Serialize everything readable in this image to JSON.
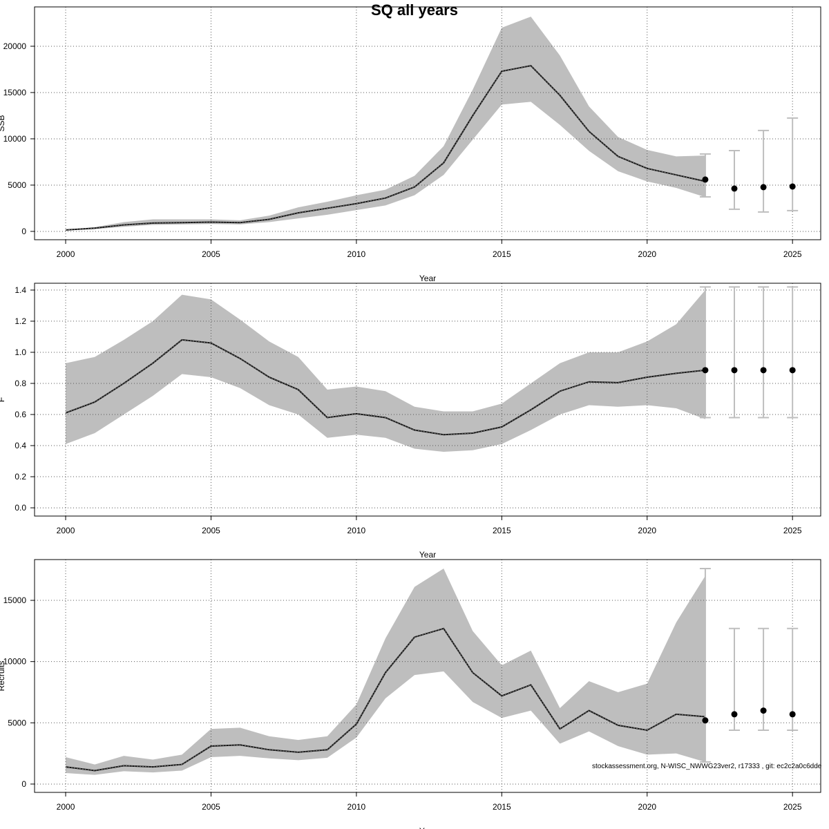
{
  "title": "SQ all years",
  "footer": "stockassessment.org, N-WISC_NWWG23ver2, r17333 , git: ec2c2a0c6dde",
  "colors": {
    "band": "#bebebe",
    "line": "#000000",
    "errorbar": "#bebebe",
    "grid": "#555555"
  },
  "chart_data": [
    {
      "type": "line",
      "title": "SQ all years",
      "xlabel": "Year",
      "ylabel": "SSB",
      "xlim": [
        1998.93,
        2025.97
      ],
      "ylim": [
        -900,
        24250
      ],
      "xticks": [
        2000,
        2005,
        2010,
        2015,
        2020,
        2025
      ],
      "yticks": [
        0,
        5000,
        10000,
        15000,
        20000
      ],
      "grid": true,
      "years": [
        2000,
        2001,
        2002,
        2003,
        2004,
        2005,
        2006,
        2007,
        2008,
        2009,
        2010,
        2011,
        2012,
        2013,
        2014,
        2015,
        2016,
        2017,
        2018,
        2019,
        2020,
        2021,
        2022
      ],
      "median": [
        150,
        350,
        700,
        900,
        950,
        1000,
        950,
        1300,
        2000,
        2500,
        3000,
        3600,
        4800,
        7400,
        12500,
        17300,
        17900,
        14700,
        10800,
        8100,
        6800,
        6100,
        5400
      ],
      "lower": [
        100,
        250,
        500,
        700,
        750,
        800,
        750,
        1000,
        1400,
        1800,
        2300,
        2800,
        3900,
        6100,
        9900,
        13700,
        14000,
        11500,
        8700,
        6500,
        5400,
        4700,
        3700
      ],
      "upper": [
        200,
        450,
        1000,
        1300,
        1300,
        1300,
        1200,
        1700,
        2600,
        3200,
        3900,
        4500,
        6000,
        9200,
        15300,
        22000,
        23200,
        19000,
        13500,
        10200,
        8800,
        8100,
        8200
      ],
      "points": [
        {
          "year": 2022,
          "value": 5600,
          "low": 3730,
          "high": 8360
        },
        {
          "year": 2023,
          "value": 4630,
          "low": 2390,
          "high": 8730
        },
        {
          "year": 2024,
          "value": 4780,
          "low": 2090,
          "high": 10900
        },
        {
          "year": 2025,
          "value": 4850,
          "low": 2240,
          "high": 12240
        }
      ]
    },
    {
      "type": "line",
      "xlabel": "Year",
      "ylabel": "F",
      "xlim": [
        1998.93,
        2025.97
      ],
      "ylim": [
        -0.053,
        1.444
      ],
      "xticks": [
        2000,
        2005,
        2010,
        2015,
        2020,
        2025
      ],
      "yticks": [
        "0.0",
        "0.2",
        "0.4",
        "0.6",
        "0.8",
        "1.0",
        "1.2",
        "1.4"
      ],
      "grid": true,
      "years": [
        2000,
        2001,
        2002,
        2003,
        2004,
        2005,
        2006,
        2007,
        2008,
        2009,
        2010,
        2011,
        2012,
        2013,
        2014,
        2015,
        2016,
        2017,
        2018,
        2019,
        2020,
        2021,
        2022
      ],
      "median": [
        0.61,
        0.68,
        0.8,
        0.93,
        1.08,
        1.06,
        0.96,
        0.84,
        0.76,
        0.58,
        0.605,
        0.58,
        0.5,
        0.47,
        0.48,
        0.52,
        0.63,
        0.75,
        0.81,
        0.805,
        0.84,
        0.865,
        0.885
      ],
      "lower": [
        0.41,
        0.48,
        0.6,
        0.72,
        0.86,
        0.84,
        0.77,
        0.66,
        0.6,
        0.45,
        0.47,
        0.45,
        0.38,
        0.36,
        0.37,
        0.41,
        0.5,
        0.6,
        0.66,
        0.65,
        0.66,
        0.64,
        0.57
      ],
      "upper": [
        0.93,
        0.97,
        1.08,
        1.2,
        1.37,
        1.34,
        1.21,
        1.07,
        0.97,
        0.76,
        0.78,
        0.75,
        0.65,
        0.62,
        0.62,
        0.67,
        0.8,
        0.93,
        1.0,
        1.0,
        1.07,
        1.18,
        1.4
      ],
      "points": [
        {
          "year": 2022,
          "value": 0.885,
          "low": 0.58,
          "high": 1.42
        },
        {
          "year": 2023,
          "value": 0.885,
          "low": 0.58,
          "high": 1.42
        },
        {
          "year": 2024,
          "value": 0.885,
          "low": 0.58,
          "high": 1.42
        },
        {
          "year": 2025,
          "value": 0.885,
          "low": 0.58,
          "high": 1.42
        }
      ]
    },
    {
      "type": "line",
      "xlabel": "Year",
      "ylabel": "Recruits",
      "xlim": [
        1998.93,
        2025.97
      ],
      "ylim": [
        -680,
        18330
      ],
      "xticks": [
        2000,
        2005,
        2010,
        2015,
        2020,
        2025
      ],
      "yticks": [
        0,
        5000,
        10000,
        15000
      ],
      "grid": true,
      "years": [
        2000,
        2001,
        2002,
        2003,
        2004,
        2005,
        2006,
        2007,
        2008,
        2009,
        2010,
        2011,
        2012,
        2013,
        2014,
        2015,
        2016,
        2017,
        2018,
        2019,
        2020,
        2021,
        2022
      ],
      "median": [
        1400,
        1100,
        1500,
        1400,
        1600,
        3100,
        3200,
        2800,
        2600,
        2800,
        4900,
        9100,
        12000,
        12700,
        9100,
        7200,
        8100,
        4500,
        6000,
        4800,
        4400,
        5700,
        5500
      ],
      "lower": [
        900,
        750,
        1050,
        950,
        1100,
        2200,
        2300,
        2100,
        1950,
        2150,
        3800,
        7000,
        8900,
        9200,
        6700,
        5400,
        6000,
        3300,
        4300,
        3100,
        2400,
        2500,
        1800
      ],
      "upper": [
        2200,
        1600,
        2300,
        2000,
        2400,
        4500,
        4600,
        3900,
        3600,
        3900,
        6500,
        11900,
        16100,
        17600,
        12500,
        9700,
        10900,
        6200,
        8400,
        7500,
        8200,
        13200,
        17000
      ],
      "points": [
        {
          "year": 2022,
          "value": 5200,
          "low": 1800,
          "high": 17600
        },
        {
          "year": 2023,
          "value": 5700,
          "low": 4400,
          "high": 12700
        },
        {
          "year": 2024,
          "value": 6000,
          "low": 4400,
          "high": 12700
        },
        {
          "year": 2025,
          "value": 5700,
          "low": 4400,
          "high": 12700
        }
      ]
    }
  ]
}
